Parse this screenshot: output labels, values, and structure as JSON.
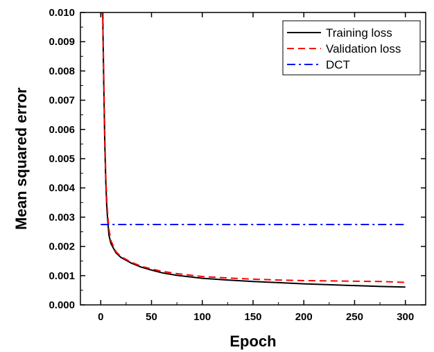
{
  "chart_data": {
    "type": "line",
    "title": "",
    "xlabel": "Epoch",
    "ylabel": "Mean squared error",
    "xlim": [
      -20,
      320
    ],
    "ylim": [
      0.0,
      0.01
    ],
    "x_ticks": [
      0,
      50,
      100,
      150,
      200,
      250,
      300
    ],
    "x_tick_labels": [
      "0",
      "50",
      "100",
      "150",
      "200",
      "250",
      "300"
    ],
    "y_ticks": [
      0.0,
      0.001,
      0.002,
      0.003,
      0.004,
      0.005,
      0.006,
      0.007,
      0.008,
      0.009,
      0.01
    ],
    "y_tick_labels": [
      "0.000",
      "0.001",
      "0.002",
      "0.003",
      "0.004",
      "0.005",
      "0.006",
      "0.007",
      "0.008",
      "0.009",
      "0.010"
    ],
    "grid": false,
    "legend_position": "top-right",
    "series": [
      {
        "name": "Training loss",
        "color": "#000000",
        "style": "solid",
        "x": [
          2,
          3,
          4,
          5,
          6,
          8,
          10,
          15,
          20,
          30,
          40,
          50,
          60,
          75,
          100,
          125,
          150,
          175,
          200,
          225,
          250,
          275,
          300
        ],
        "y": [
          0.0098,
          0.0075,
          0.0055,
          0.0042,
          0.0033,
          0.0024,
          0.0021,
          0.00178,
          0.00162,
          0.00143,
          0.00129,
          0.00119,
          0.0011,
          0.00101,
          0.00091,
          0.00085,
          0.0008,
          0.00076,
          0.00072,
          0.00069,
          0.00066,
          0.00063,
          0.00061
        ]
      },
      {
        "name": "Validation loss",
        "color": "#ff0000",
        "style": "dashed",
        "x": [
          2,
          3,
          4,
          5,
          6,
          8,
          10,
          15,
          20,
          30,
          40,
          50,
          60,
          75,
          100,
          125,
          150,
          175,
          200,
          225,
          250,
          275,
          300
        ],
        "y": [
          0.0098,
          0.0078,
          0.0058,
          0.0044,
          0.0035,
          0.0026,
          0.0022,
          0.00182,
          0.00165,
          0.00146,
          0.00132,
          0.00123,
          0.00115,
          0.00107,
          0.00097,
          0.00092,
          0.00088,
          0.00085,
          0.00083,
          0.00082,
          0.00081,
          0.0008,
          0.00077
        ]
      },
      {
        "name": "DCT",
        "color": "#0000ff",
        "style": "dashdot",
        "x": [
          0,
          300
        ],
        "y": [
          0.00275,
          0.00275
        ]
      }
    ]
  }
}
